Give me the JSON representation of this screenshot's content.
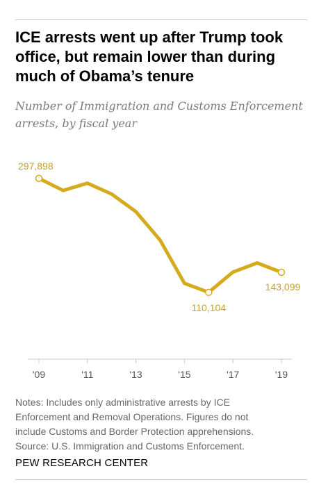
{
  "title": "ICE arrests went up after Trump took office, but remain lower than during much of Obama’s tenure",
  "subtitle": "Number of Immigration and Customs Enforcement arrests, by fiscal year",
  "notes": [
    "Notes: Includes only administrative arrests by ICE",
    "Enforcement and Removal Operations. Figures do not",
    "include Customs and Border Protection apprehensions.",
    "Source: U.S. Immigration and Customs Enforcement."
  ],
  "brand": "PEW RESEARCH CENTER",
  "colors": {
    "line": "#d3ab1d",
    "label": "#c9a227",
    "axis": "#c8c8c8",
    "tick_text": "#555555"
  },
  "chart_data": {
    "type": "line",
    "title": "ICE arrests went up after Trump took office, but remain lower than during much of Obama’s tenure",
    "subtitle": "Number of Immigration and Customs Enforcement arrests, by fiscal year",
    "xlabel": "",
    "ylabel": "",
    "x": [
      2009,
      2010,
      2011,
      2012,
      2013,
      2014,
      2015,
      2016,
      2017,
      2018,
      2019
    ],
    "values": [
      297898,
      278000,
      290000,
      272000,
      243000,
      196000,
      125000,
      110104,
      143470,
      158581,
      143099
    ],
    "xticks": [
      "'09",
      "'11",
      "'13",
      "'15",
      "'17",
      "'19"
    ],
    "xtick_values": [
      2009,
      2011,
      2013,
      2015,
      2017,
      2019
    ],
    "annotations": [
      {
        "x": 2009,
        "label": "297,898"
      },
      {
        "x": 2016,
        "label": "110,104"
      },
      {
        "x": 2019,
        "label": "143,099"
      }
    ],
    "ylim": [
      0,
      340000
    ],
    "grid": false,
    "legend": "none"
  }
}
